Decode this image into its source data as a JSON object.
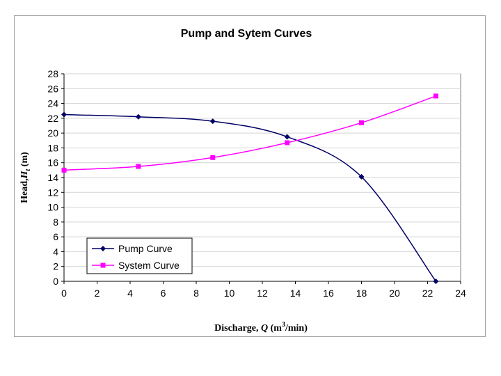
{
  "chart_data": {
    "type": "line",
    "title": "Pump and Sytem Curves",
    "xlabel": {
      "prefix": "Discharge, ",
      "var": "Q",
      "unit_open": " (m",
      "sup": "3",
      "unit_close": "/min)"
    },
    "ylabel": {
      "prefix": "Head,",
      "var": "H",
      "sub": "t",
      "unit": " (m)"
    },
    "xlim": [
      0,
      24
    ],
    "ylim": [
      0,
      28
    ],
    "xticks": [
      0,
      2,
      4,
      6,
      8,
      10,
      12,
      14,
      16,
      18,
      20,
      22,
      24
    ],
    "yticks": [
      0,
      2,
      4,
      6,
      8,
      10,
      12,
      14,
      16,
      18,
      20,
      22,
      24,
      26,
      28
    ],
    "grid": "horizontal",
    "legend_position": "bottom-left",
    "series": [
      {
        "name": "Pump Curve",
        "color": "#000066",
        "marker": "diamond",
        "x": [
          0,
          4.5,
          9,
          13.5,
          18,
          22.5
        ],
        "y": [
          22.5,
          22.2,
          21.6,
          19.5,
          14.1,
          0
        ]
      },
      {
        "name": "System Curve",
        "color": "#ff00ff",
        "marker": "square",
        "x": [
          0,
          4.5,
          9,
          13.5,
          18,
          22.5
        ],
        "y": [
          15.0,
          15.5,
          16.7,
          18.7,
          21.4,
          25.0
        ]
      }
    ]
  }
}
